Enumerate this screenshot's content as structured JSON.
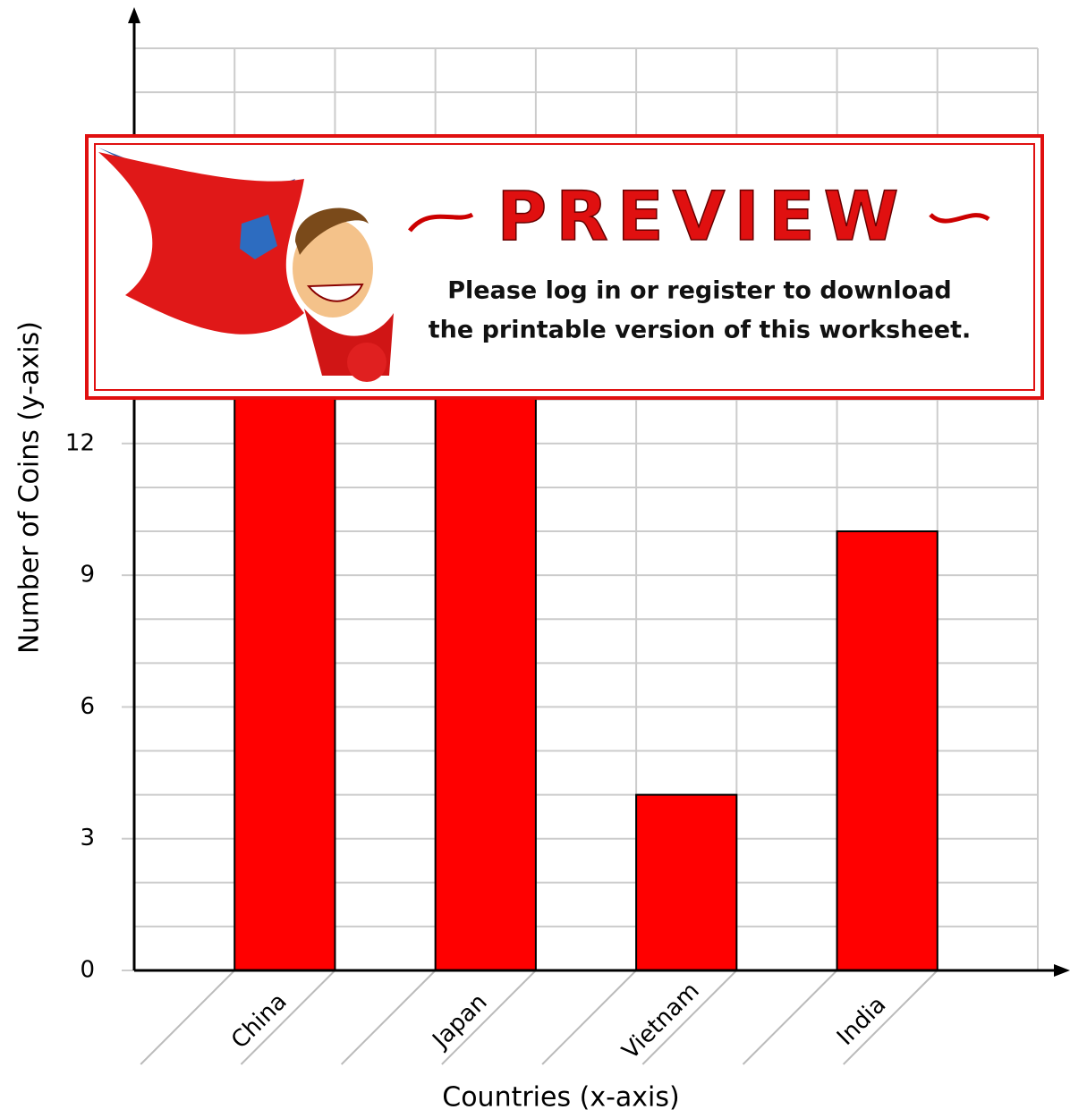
{
  "chart_data": {
    "type": "bar",
    "x_label": "Countries (x-axis)",
    "y_label": "Number of Coins (y-axis)",
    "categories": [
      "China",
      "Japan",
      "Vietnam",
      "India"
    ],
    "values": [
      15,
      15,
      4,
      10
    ],
    "color": "#ff0000",
    "ylim": [
      0,
      21
    ],
    "yticks": [
      0,
      3,
      6,
      9,
      12
    ],
    "grid": true
  },
  "preview": {
    "title": "PREVIEW",
    "lines": [
      "Please log in or register to download",
      "the printable version of this worksheet."
    ]
  }
}
